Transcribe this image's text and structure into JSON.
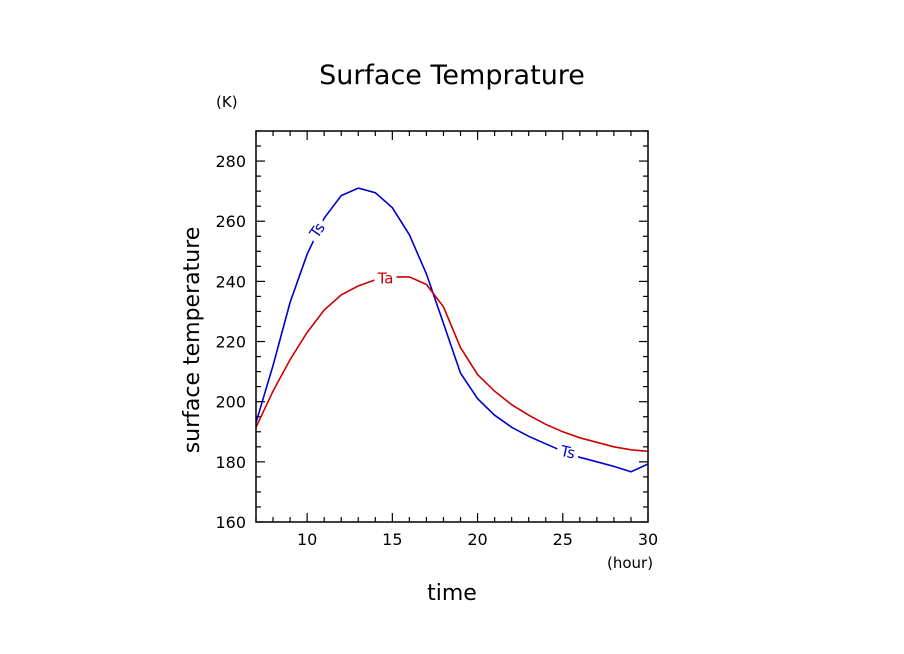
{
  "chart_data": {
    "type": "line",
    "title": "Surface Temprature",
    "xlabel": "time",
    "ylabel": "surface temperature",
    "x_unit": "(hour)",
    "y_unit": "(K)",
    "xlim": [
      7,
      30
    ],
    "ylim": [
      160,
      290
    ],
    "x_ticks": [
      10,
      15,
      20,
      25,
      30
    ],
    "y_ticks": [
      160,
      180,
      200,
      220,
      240,
      260,
      280
    ],
    "grid": false,
    "series": [
      {
        "name": "Ts",
        "color": "#0000cc",
        "x": [
          7,
          8,
          9,
          10,
          11,
          12,
          13,
          14,
          15,
          16,
          17,
          18,
          19,
          20,
          21,
          22,
          23,
          24,
          25,
          26,
          27,
          28,
          29,
          30
        ],
        "y": [
          193,
          212,
          233,
          249,
          261,
          268.5,
          271,
          269.5,
          264.5,
          255.5,
          242.5,
          226,
          209.5,
          201,
          195.5,
          191.5,
          188.5,
          186,
          183.5,
          181.5,
          180,
          178.5,
          176.7,
          179.3
        ]
      },
      {
        "name": "Ta",
        "color": "#cc0000",
        "x": [
          7,
          8,
          9,
          10,
          11,
          12,
          13,
          14,
          15,
          16,
          17,
          18,
          19,
          20,
          21,
          22,
          23,
          24,
          25,
          26,
          27,
          28,
          29,
          30
        ],
        "y": [
          191.5,
          203.5,
          214,
          223,
          230.5,
          235.5,
          238.5,
          240.5,
          241.5,
          241.5,
          239,
          231.5,
          218,
          209,
          203.5,
          199,
          195.5,
          192.5,
          190,
          188,
          186.5,
          185,
          184,
          183.5
        ]
      }
    ],
    "series_labels": [
      {
        "text": "Ts",
        "series": 0,
        "at_x": 10.6,
        "at_y": 257,
        "angle": -55
      },
      {
        "text": "Ta",
        "series": 1,
        "at_x": 14.6,
        "at_y": 241,
        "angle": 0
      },
      {
        "text": "Ts",
        "series": 0,
        "at_x": 25.3,
        "at_y": 183.2,
        "angle": 12
      }
    ]
  }
}
